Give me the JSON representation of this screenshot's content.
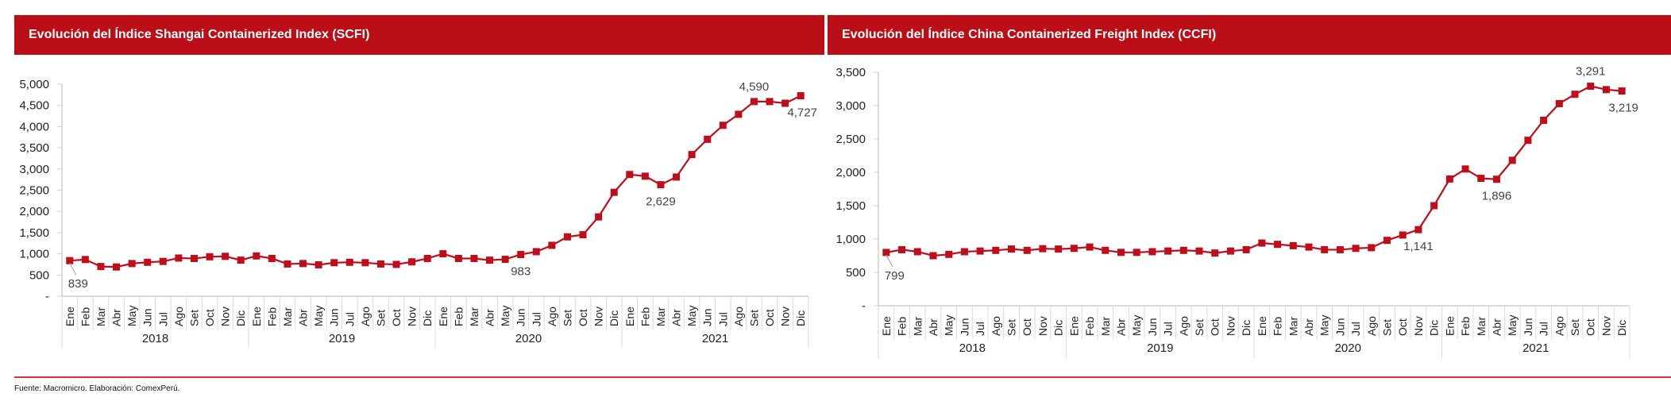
{
  "footer": {
    "source": "Fuente: Macromicro. Elaboración: ComexPerú."
  },
  "colors": {
    "banner": "#bb0e16",
    "series": "#c00d1a",
    "footer_line": "#d2303a"
  },
  "chart_data": [
    {
      "type": "line",
      "title": "Evolución del Índice Shangai Containerized Index (SCFI)",
      "xlabel": "",
      "ylabel": "",
      "ylim": [
        0,
        5000
      ],
      "yticks": [
        0,
        500,
        1000,
        1500,
        2000,
        2500,
        3000,
        3500,
        4000,
        4500,
        5000
      ],
      "ytick_labels": [
        "-",
        "500",
        "1,000",
        "1,500",
        "2,000",
        "2,500",
        "3,000",
        "3,500",
        "4,000",
        "4,500",
        "5,000"
      ],
      "months": [
        "Ene",
        "Feb",
        "Mar",
        "Abr",
        "May",
        "Jun",
        "Jul",
        "Ago",
        "Set",
        "Oct",
        "Nov",
        "Dic"
      ],
      "years": [
        "2018",
        "2019",
        "2020",
        "2021"
      ],
      "series": [
        {
          "name": "SCFI",
          "values": [
            839,
            865,
            700,
            690,
            770,
            800,
            820,
            900,
            890,
            930,
            940,
            850,
            950,
            890,
            760,
            770,
            740,
            790,
            800,
            790,
            760,
            750,
            810,
            890,
            1000,
            890,
            890,
            850,
            870,
            983,
            1050,
            1200,
            1400,
            1450,
            1870,
            2450,
            2870,
            2830,
            2629,
            2810,
            3340,
            3700,
            4030,
            4290,
            4590,
            4590,
            4550,
            4727
          ]
        }
      ],
      "data_labels": [
        {
          "index": 0,
          "text": "839",
          "pos": "below"
        },
        {
          "index": 29,
          "text": "983",
          "pos": "below"
        },
        {
          "index": 38,
          "text": "2,629",
          "pos": "below"
        },
        {
          "index": 44,
          "text": "4,590",
          "pos": "above"
        },
        {
          "index": 47,
          "text": "4,727",
          "pos": "below"
        }
      ],
      "grid": false,
      "legend": "none"
    },
    {
      "type": "line",
      "title": "Evolución del Índice China Containerized Freight Index  (CCFI)",
      "xlabel": "",
      "ylabel": "",
      "ylim": [
        0,
        3500
      ],
      "yticks": [
        0,
        500,
        1000,
        1500,
        2000,
        2500,
        3000,
        3500
      ],
      "ytick_labels": [
        "-",
        "500",
        "1,000",
        "1,500",
        "2,000",
        "2,500",
        "3,000",
        "3,500"
      ],
      "months": [
        "Ene",
        "Feb",
        "Mar",
        "Abr",
        "May",
        "Jun",
        "Jul",
        "Ago",
        "Set",
        "Oct",
        "Nov",
        "Dic"
      ],
      "years": [
        "2018",
        "2019",
        "2020",
        "2021"
      ],
      "series": [
        {
          "name": "CCFI",
          "values": [
            799,
            840,
            810,
            750,
            770,
            810,
            820,
            830,
            850,
            830,
            855,
            850,
            860,
            880,
            830,
            800,
            800,
            810,
            820,
            830,
            820,
            790,
            820,
            840,
            940,
            920,
            900,
            880,
            840,
            840,
            860,
            870,
            980,
            1060,
            1141,
            1500,
            1900,
            2050,
            1910,
            1896,
            2180,
            2480,
            2780,
            3030,
            3170,
            3291,
            3240,
            3219
          ]
        }
      ],
      "data_labels": [
        {
          "index": 0,
          "text": "799",
          "pos": "below"
        },
        {
          "index": 34,
          "text": "1,141",
          "pos": "below"
        },
        {
          "index": 39,
          "text": "1,896",
          "pos": "below"
        },
        {
          "index": 45,
          "text": "3,291",
          "pos": "above"
        },
        {
          "index": 47,
          "text": "3,219",
          "pos": "below"
        }
      ],
      "grid": false,
      "legend": "none"
    }
  ]
}
